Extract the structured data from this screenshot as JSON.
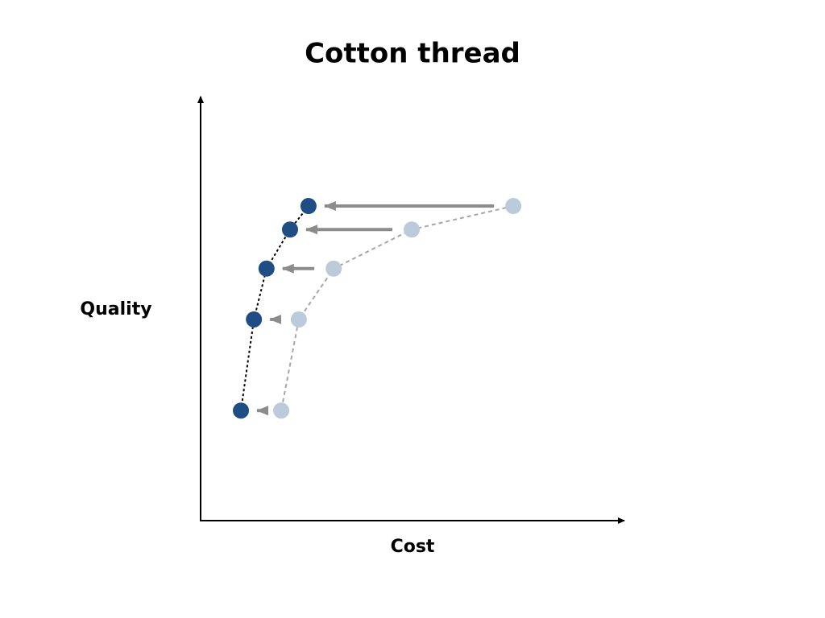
{
  "chart_data": {
    "type": "scatter",
    "title": "Cotton thread",
    "x_label": "Cost",
    "y_label": "Quality",
    "xlim": [
      0,
      100
    ],
    "ylim": [
      0,
      100
    ],
    "grid": false,
    "arrow_color": "#8c8c8c",
    "series": [
      {
        "color": "#bccbdb",
        "line_color": "#a6a6a6",
        "x": [
          74.5,
          50.3,
          31.7,
          23.4,
          19.2
        ],
        "values": [
          74.9,
          69.3,
          60.0,
          47.9,
          26.2
        ]
      },
      {
        "color": "#1f4e84",
        "line_color": "#000000",
        "x": [
          25.7,
          21.3,
          15.7,
          12.7,
          9.6
        ],
        "values": [
          74.9,
          69.3,
          60.0,
          47.9,
          26.2
        ]
      }
    ]
  }
}
